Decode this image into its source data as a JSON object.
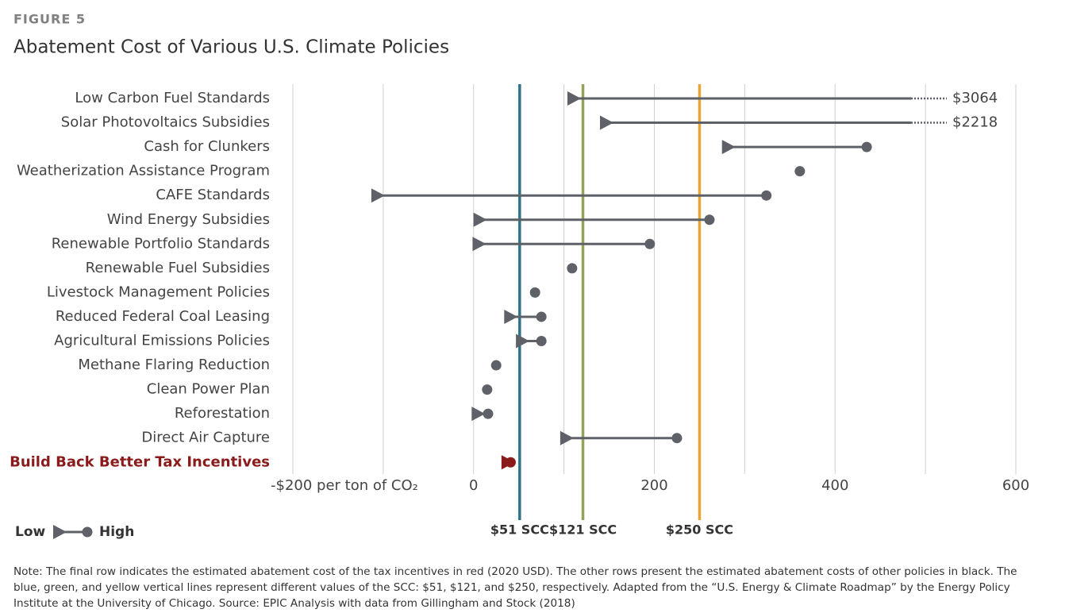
{
  "figure_label": "FIGURE 5",
  "chart_data": {
    "type": "dumbbell",
    "title": "Abatement Cost of Various U.S. Climate Policies",
    "categories": [
      "Low Carbon Fuel Standards",
      "Solar Photovoltaics Subsidies",
      "Cash for Clunkers",
      "Weatherization Assistance Program",
      "CAFE Standards",
      "Wind Energy Subsidies",
      "Renewable Portfolio Standards",
      "Renewable Fuel Subsidies",
      "Livestock Management Policies",
      "Reduced Federal Coal Leasing",
      "Agricultural Emissions Policies",
      "Methane Flaring Reduction",
      "Clean Power Plan",
      "Reforestation",
      "Direct Air Capture",
      "Build Back Better Tax Incentives"
    ],
    "series": [
      {
        "name": "Low",
        "color": "#5f6168",
        "values": [
          110,
          146,
          281,
          null,
          -107,
          6,
          5,
          null,
          null,
          40,
          53,
          null,
          null,
          4,
          102,
          37
        ]
      },
      {
        "name": "High",
        "color": "#5f6168",
        "values": [
          3064,
          2218,
          435,
          361,
          324,
          261,
          195,
          109,
          68,
          75,
          75,
          25,
          15,
          16,
          225,
          41
        ],
        "value_labels": [
          "$3064",
          "$2218",
          null,
          null,
          null,
          null,
          null,
          null,
          null,
          null,
          null,
          null,
          null,
          null,
          null,
          null
        ]
      }
    ],
    "xlim": [
      -200,
      600
    ],
    "xticks": [
      {
        "value": -200,
        "label": "-$200 per ton of CO₂"
      },
      0,
      200,
      400,
      600
    ],
    "minor_xticks": [
      -100,
      100,
      300,
      500
    ],
    "grid": true,
    "reference_lines": [
      {
        "value": 51,
        "label": "$51 SCC",
        "color": "#2e7489"
      },
      {
        "value": 121,
        "label": "$121 SCC",
        "color": "#93a35c"
      },
      {
        "value": 250,
        "label": "$250 SCC",
        "color": "#e9a637"
      }
    ],
    "highlight": {
      "index": 15,
      "color": "#8b1a1a"
    }
  },
  "note": "Note: The final row indicates the estimated abatement cost of the tax incentives in red (2020 USD). The other rows present the estimated abatement costs of other policies in black. The blue, green, and yellow vertical lines represent different values of the SCC: $51, $121, and $250, respectively. Adapted from the “U.S. Energy & Climate Roadmap” by the Energy Policy Institute at the University of Chicago. Source: EPIC Analysis with data from Gillingham and Stock (2018)"
}
